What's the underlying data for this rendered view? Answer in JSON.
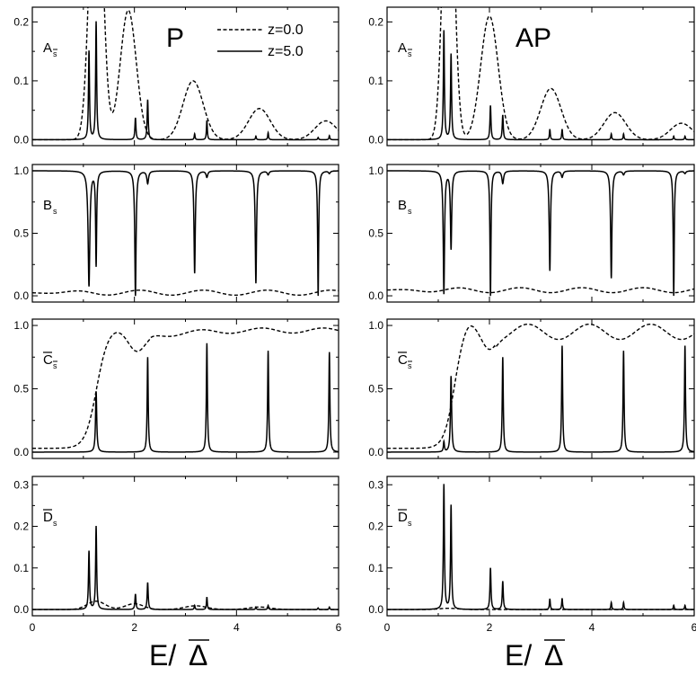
{
  "chart_data": [
    {
      "id": "A_P",
      "type": "line",
      "column_label": "P",
      "panel_label": {
        "letter": "A",
        "sub": "s",
        "bar_sub": true,
        "bar_letter": false
      },
      "xlim": [
        0,
        6
      ],
      "ylim": [
        -0.01,
        0.225
      ],
      "xticks": [
        0,
        2,
        4,
        6
      ],
      "yticks": [
        0.0,
        0.1,
        0.2
      ],
      "ytick_labels": [
        "0.0",
        "0.1",
        "0.2"
      ],
      "legend": {
        "entries": [
          {
            "name": "z=0.0",
            "style": "dashed"
          },
          {
            "name": "z=5.0",
            "style": "solid"
          }
        ],
        "placement": "top-right"
      },
      "series": [
        {
          "name": "z=0.0",
          "style": "dashed",
          "baseline": 0,
          "peaks": [
            {
              "x": 1.25,
              "h": 0.55,
              "w": 0.17
            },
            {
              "x": 1.88,
              "h": 0.22,
              "w": 0.22
            },
            {
              "x": 3.15,
              "h": 0.1,
              "w": 0.28
            },
            {
              "x": 4.45,
              "h": 0.053,
              "w": 0.3
            },
            {
              "x": 5.75,
              "h": 0.032,
              "w": 0.3
            }
          ]
        },
        {
          "name": "z=5.0",
          "style": "solid",
          "baseline": 0,
          "peaks": [
            {
              "x": 1.11,
              "h": 0.15,
              "w": 0.012
            },
            {
              "x": 1.25,
              "h": 0.2,
              "w": 0.012
            },
            {
              "x": 2.02,
              "h": 0.037,
              "w": 0.012
            },
            {
              "x": 2.26,
              "h": 0.068,
              "w": 0.012
            },
            {
              "x": 3.18,
              "h": 0.01,
              "w": 0.01
            },
            {
              "x": 3.42,
              "h": 0.033,
              "w": 0.01
            },
            {
              "x": 4.38,
              "h": 0.006,
              "w": 0.01
            },
            {
              "x": 4.62,
              "h": 0.012,
              "w": 0.01
            },
            {
              "x": 5.6,
              "h": 0.004,
              "w": 0.01
            },
            {
              "x": 5.82,
              "h": 0.007,
              "w": 0.01
            }
          ]
        }
      ]
    },
    {
      "id": "A_AP",
      "type": "line",
      "column_label": "AP",
      "panel_label": {
        "letter": "A",
        "sub": "s",
        "bar_sub": true,
        "bar_letter": false
      },
      "xlim": [
        0,
        6
      ],
      "ylim": [
        -0.01,
        0.225
      ],
      "xticks": [
        0,
        2,
        4,
        6
      ],
      "yticks": [
        0.0,
        0.1,
        0.2
      ],
      "ytick_labels": [
        "0.0",
        "0.1",
        "0.2"
      ],
      "series": [
        {
          "name": "z=0.0",
          "style": "dashed",
          "baseline": 0,
          "peaks": [
            {
              "x": 1.2,
              "h": 0.55,
              "w": 0.15
            },
            {
              "x": 2.0,
              "h": 0.21,
              "w": 0.24
            },
            {
              "x": 3.2,
              "h": 0.087,
              "w": 0.28
            },
            {
              "x": 4.45,
              "h": 0.046,
              "w": 0.3
            },
            {
              "x": 5.75,
              "h": 0.028,
              "w": 0.3
            }
          ]
        },
        {
          "name": "z=5.0",
          "style": "solid",
          "baseline": 0,
          "peaks": [
            {
              "x": 1.11,
              "h": 0.185,
              "w": 0.012
            },
            {
              "x": 1.25,
              "h": 0.145,
              "w": 0.012
            },
            {
              "x": 2.02,
              "h": 0.058,
              "w": 0.012
            },
            {
              "x": 2.26,
              "h": 0.042,
              "w": 0.012
            },
            {
              "x": 3.18,
              "h": 0.018,
              "w": 0.01
            },
            {
              "x": 3.42,
              "h": 0.018,
              "w": 0.01
            },
            {
              "x": 4.38,
              "h": 0.01,
              "w": 0.01
            },
            {
              "x": 4.62,
              "h": 0.01,
              "w": 0.01
            },
            {
              "x": 5.6,
              "h": 0.006,
              "w": 0.01
            },
            {
              "x": 5.82,
              "h": 0.006,
              "w": 0.01
            }
          ]
        }
      ]
    },
    {
      "id": "B_P",
      "type": "line",
      "panel_label": {
        "letter": "B",
        "sub": "s",
        "bar_sub": false,
        "bar_letter": false
      },
      "xlim": [
        0,
        6
      ],
      "ylim": [
        -0.05,
        1.05
      ],
      "xticks": [
        0,
        2,
        4,
        6
      ],
      "yticks": [
        0.0,
        0.5,
        1.0
      ],
      "ytick_labels": [
        "0.0",
        "0.5",
        "1.0"
      ],
      "series": [
        {
          "name": "z=0.0",
          "style": "dashed",
          "baseline": 0.025,
          "oscillation": {
            "amp": 0.02,
            "period": 1.25,
            "phase": -0.4
          }
        },
        {
          "name": "z=5.0",
          "style": "solid",
          "baseline": 1.0,
          "peaks": [
            {
              "x": 1.11,
              "h": -0.92,
              "w": 0.02
            },
            {
              "x": 1.25,
              "h": -0.75,
              "w": 0.012
            },
            {
              "x": 2.02,
              "h": -1.0,
              "w": 0.015
            },
            {
              "x": 2.26,
              "h": -0.1,
              "w": 0.02
            },
            {
              "x": 3.18,
              "h": -0.82,
              "w": 0.015
            },
            {
              "x": 3.42,
              "h": -0.05,
              "w": 0.02
            },
            {
              "x": 4.38,
              "h": -0.9,
              "w": 0.015
            },
            {
              "x": 4.62,
              "h": -0.03,
              "w": 0.02
            },
            {
              "x": 5.6,
              "h": -1.0,
              "w": 0.012
            },
            {
              "x": 5.82,
              "h": -0.02,
              "w": 0.02
            }
          ]
        }
      ]
    },
    {
      "id": "B_AP",
      "type": "line",
      "panel_label": {
        "letter": "B",
        "sub": "s",
        "bar_sub": false,
        "bar_letter": false
      },
      "xlim": [
        0,
        6
      ],
      "ylim": [
        -0.05,
        1.05
      ],
      "xticks": [
        0,
        2,
        4,
        6
      ],
      "yticks": [
        0.0,
        0.5,
        1.0
      ],
      "ytick_labels": [
        "0.0",
        "0.5",
        "1.0"
      ],
      "series": [
        {
          "name": "z=0.0",
          "style": "dashed",
          "baseline": 0.045,
          "oscillation": {
            "amp": 0.02,
            "period": 1.2,
            "phase": 0.2
          }
        },
        {
          "name": "z=5.0",
          "style": "solid",
          "baseline": 1.0,
          "peaks": [
            {
              "x": 1.11,
              "h": -0.98,
              "w": 0.015
            },
            {
              "x": 1.25,
              "h": -0.62,
              "w": 0.015
            },
            {
              "x": 2.02,
              "h": -1.0,
              "w": 0.012
            },
            {
              "x": 2.26,
              "h": -0.1,
              "w": 0.02
            },
            {
              "x": 3.18,
              "h": -0.8,
              "w": 0.015
            },
            {
              "x": 3.42,
              "h": -0.05,
              "w": 0.02
            },
            {
              "x": 4.38,
              "h": -0.86,
              "w": 0.015
            },
            {
              "x": 4.62,
              "h": -0.03,
              "w": 0.02
            },
            {
              "x": 5.6,
              "h": -1.0,
              "w": 0.012
            },
            {
              "x": 5.82,
              "h": -0.02,
              "w": 0.02
            }
          ]
        }
      ]
    },
    {
      "id": "C_P",
      "type": "line",
      "panel_label": {
        "letter": "C",
        "sub": "s",
        "bar_sub": true,
        "bar_letter": true
      },
      "xlim": [
        0,
        6
      ],
      "ylim": [
        -0.05,
        1.05
      ],
      "xticks": [
        0,
        2,
        4,
        6
      ],
      "yticks": [
        0.0,
        0.5,
        1.0
      ],
      "ytick_labels": [
        "0.0",
        "0.5",
        "1.0"
      ],
      "series": [
        {
          "name": "z=0.0",
          "style": "dashed",
          "baseline": 0,
          "curve": "C_P"
        },
        {
          "name": "z=5.0",
          "style": "solid",
          "baseline": 0,
          "peaks": [
            {
              "x": 1.25,
              "h": 0.48,
              "w": 0.014
            },
            {
              "x": 2.26,
              "h": 0.75,
              "w": 0.012
            },
            {
              "x": 3.42,
              "h": 0.86,
              "w": 0.012
            },
            {
              "x": 4.62,
              "h": 0.8,
              "w": 0.012
            },
            {
              "x": 5.82,
              "h": 0.79,
              "w": 0.012
            }
          ]
        }
      ]
    },
    {
      "id": "C_AP",
      "type": "line",
      "panel_label": {
        "letter": "C",
        "sub": "s",
        "bar_sub": true,
        "bar_letter": true
      },
      "xlim": [
        0,
        6
      ],
      "ylim": [
        -0.05,
        1.05
      ],
      "xticks": [
        0,
        2,
        4,
        6
      ],
      "yticks": [
        0.0,
        0.5,
        1.0
      ],
      "ytick_labels": [
        "0.0",
        "0.5",
        "1.0"
      ],
      "series": [
        {
          "name": "z=0.0",
          "style": "dashed",
          "baseline": 0,
          "curve": "C_AP"
        },
        {
          "name": "z=5.0",
          "style": "solid",
          "baseline": 0,
          "peaks": [
            {
              "x": 1.11,
              "h": 0.08,
              "w": 0.012
            },
            {
              "x": 1.25,
              "h": 0.6,
              "w": 0.014
            },
            {
              "x": 2.26,
              "h": 0.75,
              "w": 0.012
            },
            {
              "x": 3.42,
              "h": 0.84,
              "w": 0.012
            },
            {
              "x": 4.62,
              "h": 0.8,
              "w": 0.012
            },
            {
              "x": 5.82,
              "h": 0.84,
              "w": 0.012
            }
          ]
        }
      ]
    },
    {
      "id": "D_P",
      "type": "line",
      "panel_label": {
        "letter": "D",
        "sub": "s",
        "bar_sub": false,
        "bar_letter": true
      },
      "xlim": [
        0,
        6
      ],
      "ylim": [
        -0.015,
        0.32
      ],
      "xticks": [
        0,
        2,
        4,
        6
      ],
      "yticks": [
        0.0,
        0.1,
        0.2,
        0.3
      ],
      "ytick_labels": [
        "0.0",
        "0.1",
        "0.2",
        "0.3"
      ],
      "xtick_labels": [
        "0",
        "2",
        "4",
        "6"
      ],
      "series": [
        {
          "name": "z=0.0",
          "style": "dashed",
          "baseline": 0,
          "peaks": [
            {
              "x": 1.25,
              "h": 0.02,
              "w": 0.25
            },
            {
              "x": 2.0,
              "h": 0.014,
              "w": 0.25
            },
            {
              "x": 3.2,
              "h": 0.009,
              "w": 0.3
            },
            {
              "x": 4.45,
              "h": 0.006,
              "w": 0.3
            }
          ]
        },
        {
          "name": "z=5.0",
          "style": "solid",
          "baseline": 0,
          "peaks": [
            {
              "x": 1.11,
              "h": 0.14,
              "w": 0.012
            },
            {
              "x": 1.25,
              "h": 0.2,
              "w": 0.012
            },
            {
              "x": 2.02,
              "h": 0.037,
              "w": 0.012
            },
            {
              "x": 2.26,
              "h": 0.065,
              "w": 0.012
            },
            {
              "x": 3.18,
              "h": 0.01,
              "w": 0.01
            },
            {
              "x": 3.42,
              "h": 0.03,
              "w": 0.01
            },
            {
              "x": 4.38,
              "h": 0.006,
              "w": 0.01
            },
            {
              "x": 4.62,
              "h": 0.01,
              "w": 0.01
            },
            {
              "x": 5.6,
              "h": 0.004,
              "w": 0.01
            },
            {
              "x": 5.82,
              "h": 0.006,
              "w": 0.01
            }
          ]
        }
      ]
    },
    {
      "id": "D_AP",
      "type": "line",
      "panel_label": {
        "letter": "D",
        "sub": "s",
        "bar_sub": false,
        "bar_letter": true
      },
      "xlim": [
        0,
        6
      ],
      "ylim": [
        -0.015,
        0.32
      ],
      "xticks": [
        0,
        2,
        4,
        6
      ],
      "yticks": [
        0.0,
        0.1,
        0.2,
        0.3
      ],
      "ytick_labels": [
        "0.0",
        "0.1",
        "0.2",
        "0.3"
      ],
      "xtick_labels": [
        "0",
        "2",
        "4",
        "6"
      ],
      "series": [
        {
          "name": "z=0.0",
          "style": "dashed",
          "baseline": 0,
          "peaks": [
            {
              "x": 1.2,
              "h": 0.003,
              "w": 0.25
            }
          ]
        },
        {
          "name": "z=5.0",
          "style": "solid",
          "baseline": 0,
          "peaks": [
            {
              "x": 1.11,
              "h": 0.3,
              "w": 0.012
            },
            {
              "x": 1.25,
              "h": 0.25,
              "w": 0.012
            },
            {
              "x": 2.02,
              "h": 0.1,
              "w": 0.012
            },
            {
              "x": 2.26,
              "h": 0.068,
              "w": 0.012
            },
            {
              "x": 3.18,
              "h": 0.026,
              "w": 0.01
            },
            {
              "x": 3.42,
              "h": 0.027,
              "w": 0.01
            },
            {
              "x": 4.38,
              "h": 0.017,
              "w": 0.01
            },
            {
              "x": 4.62,
              "h": 0.017,
              "w": 0.01
            },
            {
              "x": 5.6,
              "h": 0.01,
              "w": 0.01
            },
            {
              "x": 5.82,
              "h": 0.01,
              "w": 0.01
            }
          ]
        }
      ]
    }
  ],
  "x_axis_title": {
    "main": "E/",
    "symbol": "Δ"
  }
}
